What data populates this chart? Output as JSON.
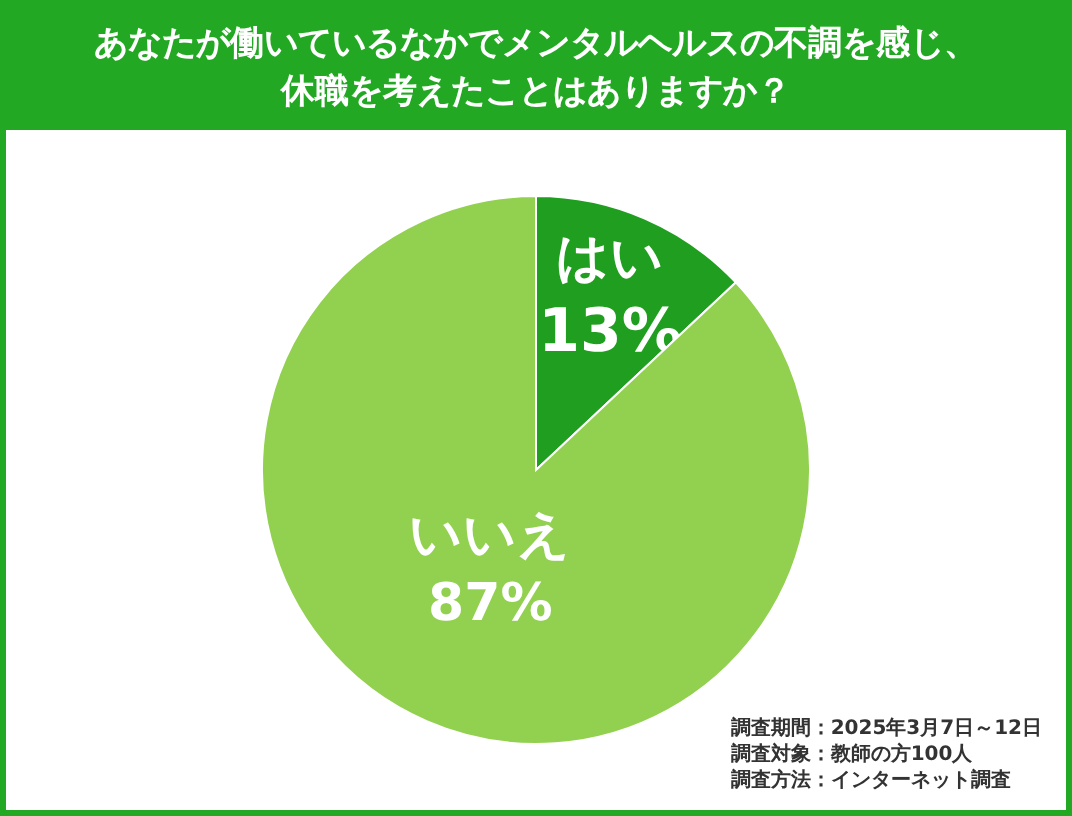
{
  "chart_data": {
    "type": "pie",
    "title": "あなたが働いているなかでメンタルヘルスの不調を感じ、休職を考えたことはありますか？",
    "categories": [
      "はい",
      "いいえ"
    ],
    "values": [
      13,
      87
    ],
    "colors": [
      "#1f9e1f",
      "#92d050"
    ],
    "value_labels": [
      "13%",
      "87%"
    ],
    "annotations": [
      "調査期間：2025年3月7日～12日",
      "調査対象：教師の方100人",
      "調査方法：インターネット調査"
    ]
  }
}
